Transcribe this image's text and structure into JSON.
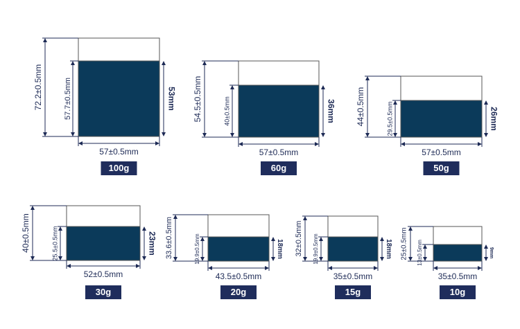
{
  "items": [
    {
      "weight": "100g",
      "total_height": "72.2±0.5mm",
      "body_height": "57.7±0.5mm",
      "label_height": "53mm",
      "width": "57±0.5mm"
    },
    {
      "weight": "60g",
      "total_height": "54.5±0.5mm",
      "body_height": "40±0.5mm",
      "label_height": "36mm",
      "width": "57±0.5mm"
    },
    {
      "weight": "50g",
      "total_height": "44±0.5mm",
      "body_height": "29.5±0.5mm",
      "label_height": "26mm",
      "width": "57±0.5mm"
    },
    {
      "weight": "30g",
      "total_height": "40±0.5mm",
      "body_height": "25.5±0.5mm",
      "label_height": "23mm",
      "width": "52±0.5mm"
    },
    {
      "weight": "20g",
      "total_height": "33.6±0.5mm",
      "body_height": "19.9±0.5mm",
      "label_height": "18mm",
      "width": "43.5±0.5mm"
    },
    {
      "weight": "15g",
      "total_height": "32±0.5mm",
      "body_height": "19.9±0.5mm",
      "label_height": "18mm",
      "width": "35±0.5mm"
    },
    {
      "weight": "10g",
      "total_height": "25±0.5mm",
      "body_height": "13±0.5mm",
      "label_height": "9mm",
      "width": "35±0.5mm"
    }
  ]
}
